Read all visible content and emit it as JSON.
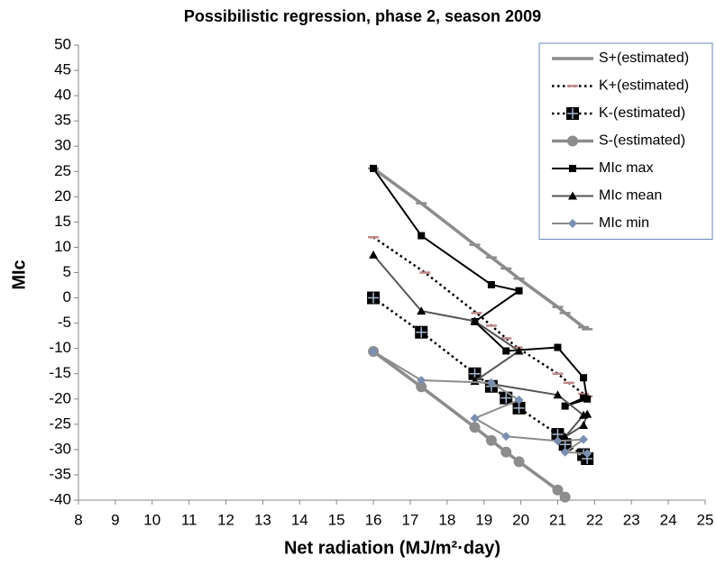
{
  "chart_data": {
    "type": "line",
    "title": "Possibilistic regression, phase 2, season 2009",
    "x_label": "Net radiation (MJ/m²·day)",
    "y_label": "MIc",
    "xlim": [
      8,
      25
    ],
    "ylim": [
      -40,
      50
    ],
    "xticks": [
      8,
      9,
      10,
      11,
      12,
      13,
      14,
      15,
      16,
      17,
      18,
      19,
      20,
      21,
      22,
      23,
      24,
      25
    ],
    "yticks": [
      -40,
      -35,
      -30,
      -25,
      -20,
      -15,
      -10,
      -5,
      0,
      5,
      10,
      15,
      20,
      25,
      30,
      35,
      40,
      45,
      50
    ],
    "legend": "top-right",
    "series": [
      {
        "name": "S+(estimated)",
        "color": "#8c8c8c",
        "marker": "dash",
        "marker_color": "#8c8c8c",
        "dash": "solid",
        "width": 3.5,
        "x": [
          16.0,
          17.3,
          18.75,
          19.2,
          19.6,
          19.95,
          21.0,
          21.2,
          21.7,
          21.8
        ],
        "values": [
          25.6,
          18.7,
          10.5,
          8,
          5.8,
          3.8,
          -1.8,
          -3,
          -5.8,
          -6.2
        ]
      },
      {
        "name": "K+(estimated)",
        "color": "#000000",
        "marker": "dash",
        "marker_color": "#c08888",
        "dash": "dotted",
        "width": 2.5,
        "x": [
          16.0,
          17.4,
          18.8,
          19.2,
          19.6,
          19.9,
          21.0,
          21.3,
          21.7,
          21.8
        ],
        "values": [
          12,
          5,
          -3,
          -5.5,
          -8,
          -9.8,
          -15,
          -16.8,
          -19,
          -19.5
        ]
      },
      {
        "name": "K-(estimated)",
        "color": "#000000",
        "marker": "bigsquare",
        "marker_color": "#000000",
        "dash": "dotted",
        "width": 2.5,
        "x": [
          16.0,
          17.3,
          18.75,
          19.2,
          19.6,
          19.95,
          21.0,
          21.2,
          21.7,
          21.8
        ],
        "values": [
          0,
          -6.8,
          -15,
          -17.5,
          -19.8,
          -21.8,
          -27,
          -29,
          -31,
          -31.8
        ]
      },
      {
        "name": "S-(estimated)",
        "color": "#8c8c8c",
        "marker": "circle",
        "marker_color": "#8c8c8c",
        "dash": "solid",
        "width": 3.5,
        "x": [
          16.0,
          17.3,
          18.75,
          19.2,
          19.6,
          19.95,
          21.0,
          21.2
        ],
        "values": [
          -10.6,
          -17.6,
          -25.6,
          -28.2,
          -30.5,
          -32.4,
          -38,
          -39.4
        ]
      },
      {
        "name": "MIc max",
        "color": "#000000",
        "marker": "square",
        "marker_color": "#000000",
        "dash": "solid",
        "width": 2,
        "x": [
          16.0,
          17.3,
          19.2,
          19.95,
          18.75,
          19.6,
          21.0,
          21.7,
          21.8,
          21.2,
          21.7
        ],
        "values": [
          25.6,
          12.3,
          2.6,
          1.4,
          -4.7,
          -10.5,
          -9.8,
          -15.8,
          -20,
          -21.4,
          -19.8
        ]
      },
      {
        "name": "MIc mean",
        "color": "#555555",
        "marker": "triangle",
        "marker_color": "#000000",
        "dash": "solid",
        "width": 2,
        "x": [
          16.0,
          17.3,
          18.75,
          19.95,
          18.75,
          21.0,
          21.7,
          21.2,
          21.7,
          21.8
        ],
        "values": [
          8.5,
          -2.6,
          -4.6,
          -10.5,
          -16.5,
          -19.2,
          -23.2,
          -27.5,
          -25.2,
          -23
        ]
      },
      {
        "name": "MIc min",
        "color": "#8c8c8c",
        "marker": "diamond",
        "marker_color": "#7b8fb0",
        "dash": "solid",
        "width": 2,
        "x": [
          16.0,
          17.3,
          19.2,
          19.95,
          18.75,
          19.6,
          21.0,
          21.7,
          21.2,
          21.8
        ],
        "values": [
          -10.6,
          -16.3,
          -16.8,
          -20.2,
          -23.8,
          -27.4,
          -28.3,
          -28,
          -30.5,
          -30.8
        ]
      }
    ]
  }
}
